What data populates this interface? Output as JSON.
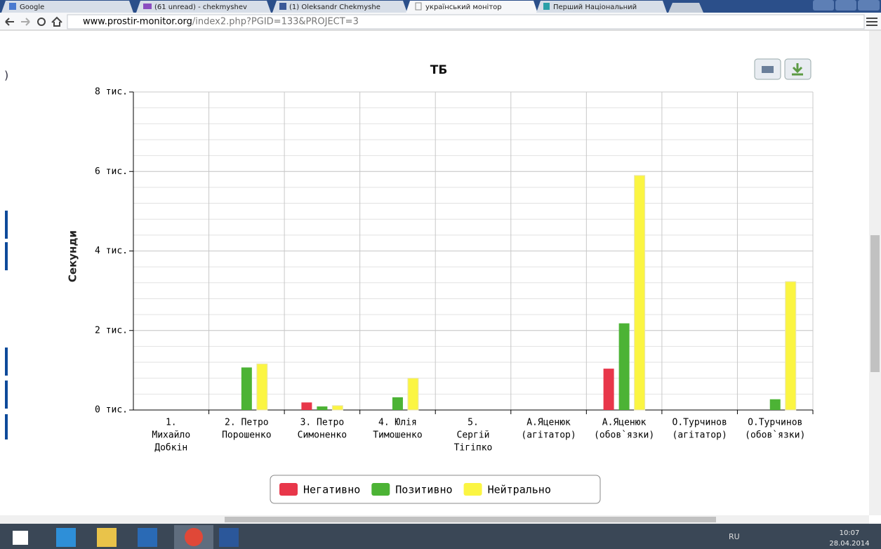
{
  "browser": {
    "tabs": [
      "Google",
      "(61 unread) - chekmyshev",
      "(1) Oleksandr Chekmyshe",
      "український монітор",
      "Перший Національний"
    ],
    "url_host": "www.prostir-monitor.org",
    "url_path": "/index2.php?PGID=133&PROJECT=3"
  },
  "page_fragment": ")",
  "chart_data": {
    "type": "bar",
    "title": "ТБ",
    "y_label": "Секунди",
    "categories": [
      [
        "1.",
        "Михайло",
        "Добкін"
      ],
      [
        "2. Петро",
        "Порошенко"
      ],
      [
        "3. Петро",
        "Симоненко"
      ],
      [
        "4. Юлія",
        "Тимошенко"
      ],
      [
        "5.",
        "Сергій",
        "Тігіпко"
      ],
      [
        "А.Яценюк",
        "(агітатор)"
      ],
      [
        "А.Яценюк",
        "(обов`язки)"
      ],
      [
        "О.Турчинов",
        "(агітатор)"
      ],
      [
        "О.Турчинов",
        "(обов`язки)"
      ]
    ],
    "series": [
      {
        "name": "Негативно",
        "color": "#e8374a",
        "values": [
          0,
          0,
          190,
          0,
          0,
          0,
          1040,
          0,
          0
        ]
      },
      {
        "name": "Позитивно",
        "color": "#4cb335",
        "values": [
          0,
          1070,
          90,
          320,
          0,
          0,
          2180,
          0,
          270
        ]
      },
      {
        "name": "Нейтрально",
        "color": "#fbf542",
        "values": [
          0,
          1160,
          110,
          800,
          0,
          0,
          5900,
          0,
          3230
        ]
      }
    ],
    "ylim": [
      0,
      8000
    ],
    "yticks": [
      {
        "value": 0,
        "label": "0 тис."
      },
      {
        "value": 2000,
        "label": "2 тис."
      },
      {
        "value": 4000,
        "label": "4 тис."
      },
      {
        "value": 6000,
        "label": "6 тис."
      },
      {
        "value": 8000,
        "label": "8 тис."
      }
    ],
    "minor_tick_interval": 400,
    "grid": true,
    "legend": "bottom"
  },
  "taskbar": {
    "language": "RU",
    "time": "10:07",
    "date": "28.04.2014"
  }
}
